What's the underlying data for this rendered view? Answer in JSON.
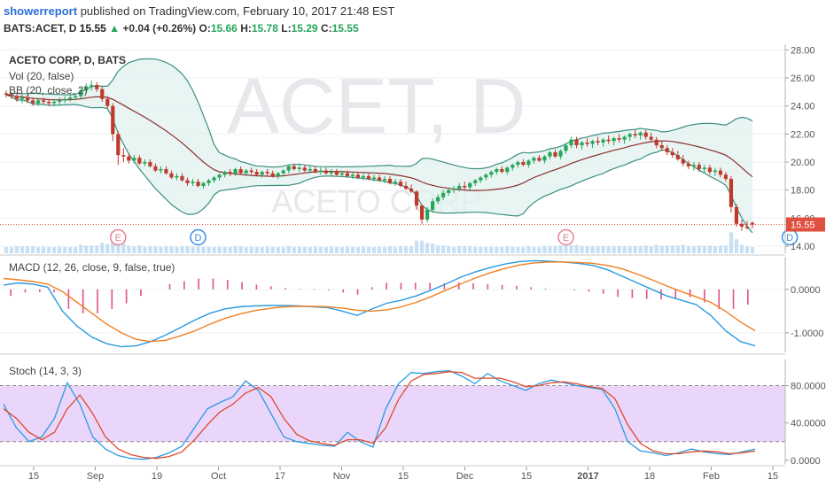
{
  "header": {
    "username": "showerreport",
    "published_text": "published on TradingView.com, February 10, 2017 21:48 EST",
    "symbol_line": "BATS:ACET, D",
    "last_price": "15.55",
    "up_arrow": "▲",
    "change": "+0.04 (+0.26%)",
    "open_label": "O:",
    "open": "15.66",
    "high_label": "H:",
    "high": "15.78",
    "low_label": "L:",
    "low": "15.29",
    "close_label": "C:",
    "close": "15.55"
  },
  "colors": {
    "up": "#26a65b",
    "down": "#c0392b",
    "bb_band": "#3c8f80",
    "bb_fill": "#e0f2ef",
    "bb_basis": "#8b2f2f",
    "macd": "#2c9ae0",
    "signal": "#f07f22",
    "hist": "#e0508a",
    "stoch_k": "#2c9ae0",
    "stoch_d": "#e04a2a",
    "stoch_band": "#ead6fa",
    "volume": "#b7d6ef",
    "earnings": "#e57f95",
    "dividend": "#3a8ee6",
    "price_tag": "#e05040"
  },
  "chart_data": [
    {
      "type": "candlestick",
      "title": "ACETO CORP, D, BATS",
      "watermark_symbol": "ACET, D",
      "watermark_name": "ACETO CORP",
      "indicator_labels": [
        "Vol (20, false)",
        "BB (20, close, 2)"
      ],
      "ylim": [
        13.5,
        28.4
      ],
      "y_ticks": [
        "28.00",
        "26.00",
        "24.00",
        "22.00",
        "20.00",
        "18.00",
        "16.00",
        "14.00"
      ],
      "last_price_tag": "15.55",
      "last_price": 15.55,
      "event_markers": [
        {
          "label": "E",
          "index": 21
        },
        {
          "label": "D",
          "index": 36
        },
        {
          "label": "E",
          "index": 105
        },
        {
          "label": "D",
          "index": 147
        },
        {
          "label": "E",
          "index": 210
        }
      ],
      "ohlc": [
        [
          24.9,
          25.1,
          24.6,
          24.8
        ],
        [
          24.8,
          25.0,
          24.5,
          24.7
        ],
        [
          24.7,
          24.9,
          24.3,
          24.5
        ],
        [
          24.5,
          24.8,
          24.2,
          24.6
        ],
        [
          24.6,
          24.8,
          24.2,
          24.4
        ],
        [
          24.4,
          24.6,
          24.0,
          24.2
        ],
        [
          24.2,
          24.5,
          24.0,
          24.4
        ],
        [
          24.4,
          24.6,
          24.1,
          24.3
        ],
        [
          24.3,
          24.5,
          24.0,
          24.2
        ],
        [
          24.2,
          24.5,
          24.0,
          24.3
        ],
        [
          24.3,
          24.6,
          24.1,
          24.4
        ],
        [
          24.4,
          24.7,
          24.2,
          24.5
        ],
        [
          24.5,
          24.8,
          24.3,
          24.6
        ],
        [
          24.6,
          24.9,
          24.4,
          24.7
        ],
        [
          24.7,
          25.3,
          24.5,
          25.1
        ],
        [
          25.1,
          25.6,
          24.9,
          25.4
        ],
        [
          25.4,
          25.8,
          25.1,
          25.5
        ],
        [
          25.5,
          25.7,
          25.0,
          25.2
        ],
        [
          25.2,
          25.4,
          24.3,
          24.5
        ],
        [
          24.5,
          24.7,
          23.8,
          24.0
        ],
        [
          24.0,
          24.2,
          21.5,
          22.0
        ],
        [
          22.0,
          22.2,
          19.8,
          20.5
        ],
        [
          20.5,
          21.0,
          20.0,
          20.4
        ],
        [
          20.4,
          20.6,
          19.9,
          20.1
        ],
        [
          20.1,
          20.5,
          19.9,
          20.3
        ],
        [
          20.3,
          20.5,
          19.8,
          19.9
        ],
        [
          19.9,
          20.2,
          19.7,
          20.0
        ],
        [
          20.0,
          20.2,
          19.6,
          19.7
        ],
        [
          19.7,
          19.9,
          19.3,
          19.4
        ],
        [
          19.4,
          19.7,
          19.2,
          19.5
        ],
        [
          19.5,
          19.7,
          19.1,
          19.2
        ],
        [
          19.2,
          19.4,
          18.8,
          18.9
        ],
        [
          18.9,
          19.2,
          18.7,
          19.0
        ],
        [
          19.0,
          19.2,
          18.6,
          18.7
        ],
        [
          18.7,
          18.9,
          18.3,
          18.5
        ],
        [
          18.5,
          18.8,
          18.3,
          18.6
        ],
        [
          18.6,
          18.8,
          18.2,
          18.3
        ],
        [
          18.3,
          18.6,
          18.1,
          18.5
        ],
        [
          18.5,
          18.8,
          18.3,
          18.7
        ],
        [
          18.7,
          19.0,
          18.5,
          18.9
        ],
        [
          18.9,
          19.2,
          18.7,
          19.1
        ],
        [
          19.1,
          19.4,
          18.9,
          19.3
        ],
        [
          19.3,
          19.5,
          19.0,
          19.2
        ],
        [
          19.2,
          19.6,
          19.0,
          19.5
        ],
        [
          19.5,
          19.7,
          19.1,
          19.2
        ],
        [
          19.2,
          19.5,
          19.0,
          19.4
        ],
        [
          19.4,
          19.6,
          19.1,
          19.3
        ],
        [
          19.3,
          19.5,
          19.0,
          19.1
        ],
        [
          19.1,
          19.4,
          18.9,
          19.3
        ],
        [
          19.3,
          19.5,
          19.0,
          19.2
        ],
        [
          19.2,
          19.4,
          18.9,
          19.0
        ],
        [
          19.0,
          19.3,
          18.8,
          19.2
        ],
        [
          19.2,
          19.5,
          19.0,
          19.4
        ],
        [
          19.4,
          19.8,
          19.2,
          19.7
        ],
        [
          19.7,
          19.9,
          19.4,
          19.5
        ],
        [
          19.5,
          19.8,
          19.3,
          19.6
        ],
        [
          19.6,
          19.8,
          19.3,
          19.4
        ],
        [
          19.4,
          19.7,
          19.2,
          19.5
        ],
        [
          19.5,
          19.7,
          19.2,
          19.3
        ],
        [
          19.3,
          19.6,
          19.1,
          19.4
        ],
        [
          19.4,
          19.6,
          19.1,
          19.2
        ],
        [
          19.2,
          19.5,
          19.0,
          19.3
        ],
        [
          19.3,
          19.5,
          19.0,
          19.1
        ],
        [
          19.1,
          19.4,
          18.9,
          19.2
        ],
        [
          19.2,
          19.4,
          18.9,
          19.0
        ],
        [
          19.0,
          19.3,
          18.8,
          19.1
        ],
        [
          19.1,
          19.3,
          18.8,
          18.9
        ],
        [
          18.9,
          19.2,
          18.7,
          19.0
        ],
        [
          19.0,
          19.2,
          18.7,
          18.8
        ],
        [
          18.8,
          19.1,
          18.6,
          18.9
        ],
        [
          18.9,
          19.1,
          18.6,
          18.7
        ],
        [
          18.7,
          19.0,
          18.5,
          18.8
        ],
        [
          18.8,
          19.0,
          18.4,
          18.5
        ],
        [
          18.5,
          18.8,
          18.3,
          18.6
        ],
        [
          18.6,
          18.8,
          18.2,
          18.3
        ],
        [
          18.3,
          18.6,
          18.0,
          18.1
        ],
        [
          18.1,
          18.4,
          17.8,
          17.9
        ],
        [
          17.9,
          18.0,
          16.6,
          16.9
        ],
        [
          16.9,
          17.0,
          15.6,
          15.9
        ],
        [
          15.9,
          16.8,
          15.7,
          16.6
        ],
        [
          16.6,
          17.4,
          16.4,
          17.2
        ],
        [
          17.2,
          17.7,
          17.0,
          17.5
        ],
        [
          17.5,
          18.0,
          17.3,
          17.8
        ],
        [
          17.8,
          18.2,
          17.6,
          18.0
        ],
        [
          18.0,
          18.3,
          17.8,
          18.1
        ],
        [
          18.1,
          18.5,
          17.9,
          18.3
        ],
        [
          18.3,
          18.6,
          18.0,
          18.2
        ],
        [
          18.2,
          18.6,
          18.0,
          18.5
        ],
        [
          18.5,
          18.8,
          18.3,
          18.7
        ],
        [
          18.7,
          19.0,
          18.5,
          18.9
        ],
        [
          18.9,
          19.2,
          18.7,
          19.1
        ],
        [
          19.1,
          19.4,
          18.9,
          19.3
        ],
        [
          19.3,
          19.6,
          19.1,
          19.5
        ],
        [
          19.5,
          19.7,
          19.2,
          19.3
        ],
        [
          19.3,
          19.7,
          19.1,
          19.6
        ],
        [
          19.6,
          19.9,
          19.4,
          19.8
        ],
        [
          19.8,
          20.1,
          19.6,
          20.0
        ],
        [
          20.0,
          20.2,
          19.7,
          19.8
        ],
        [
          19.8,
          20.2,
          19.6,
          20.1
        ],
        [
          20.1,
          20.4,
          19.9,
          20.3
        ],
        [
          20.3,
          20.5,
          20.0,
          20.1
        ],
        [
          20.1,
          20.5,
          19.9,
          20.4
        ],
        [
          20.4,
          20.8,
          20.2,
          20.7
        ],
        [
          20.7,
          20.9,
          20.3,
          20.4
        ],
        [
          20.4,
          20.9,
          20.2,
          20.8
        ],
        [
          20.8,
          21.3,
          20.6,
          21.2
        ],
        [
          21.2,
          21.8,
          21.0,
          21.6
        ],
        [
          21.6,
          21.8,
          21.0,
          21.2
        ],
        [
          21.2,
          21.5,
          20.9,
          21.4
        ],
        [
          21.4,
          21.7,
          21.1,
          21.3
        ],
        [
          21.3,
          21.6,
          21.0,
          21.5
        ],
        [
          21.5,
          21.8,
          21.2,
          21.4
        ],
        [
          21.4,
          21.7,
          21.1,
          21.6
        ],
        [
          21.6,
          21.9,
          21.3,
          21.5
        ],
        [
          21.5,
          21.8,
          21.2,
          21.7
        ],
        [
          21.7,
          22.0,
          21.4,
          21.6
        ],
        [
          21.6,
          21.9,
          21.3,
          21.8
        ],
        [
          21.8,
          22.1,
          21.5,
          22.0
        ],
        [
          22.0,
          22.3,
          21.7,
          21.9
        ],
        [
          21.9,
          22.2,
          21.6,
          22.1
        ],
        [
          22.1,
          22.3,
          21.6,
          21.8
        ],
        [
          21.8,
          22.1,
          21.5,
          21.6
        ],
        [
          21.6,
          21.8,
          21.0,
          21.2
        ],
        [
          21.2,
          21.5,
          20.8,
          21.0
        ],
        [
          21.0,
          21.2,
          20.5,
          20.7
        ],
        [
          20.7,
          21.0,
          20.3,
          20.5
        ],
        [
          20.5,
          20.8,
          20.1,
          20.2
        ],
        [
          20.2,
          20.5,
          19.7,
          19.9
        ],
        [
          19.9,
          20.1,
          19.5,
          19.7
        ],
        [
          19.7,
          20.0,
          19.4,
          19.8
        ],
        [
          19.8,
          20.0,
          19.3,
          19.5
        ],
        [
          19.5,
          19.8,
          19.2,
          19.6
        ],
        [
          19.6,
          19.8,
          19.1,
          19.3
        ],
        [
          19.3,
          19.6,
          19.0,
          19.4
        ],
        [
          19.4,
          19.6,
          18.9,
          19.1
        ],
        [
          19.1,
          19.3,
          18.6,
          18.8
        ],
        [
          18.8,
          19.0,
          16.4,
          16.8
        ],
        [
          16.8,
          17.0,
          15.4,
          15.6
        ],
        [
          15.6,
          15.9,
          15.1,
          15.4
        ],
        [
          15.4,
          15.8,
          15.2,
          15.3
        ],
        [
          15.66,
          15.78,
          15.29,
          15.55
        ]
      ]
    },
    {
      "type": "line",
      "title": "MACD (12, 26, close, 9, false, true)",
      "ylim": [
        -1.45,
        0.75
      ],
      "y_ticks": [
        "0.0000",
        "-1.0000"
      ],
      "series": [
        {
          "name": "",
          "y": [
            0.1,
            0.15,
            0.12,
            0.05,
            -0.5,
            -0.85,
            -1.1,
            -1.25,
            -1.32,
            -1.3,
            -1.2,
            -1.05,
            -0.88,
            -0.7,
            -0.55,
            -0.45,
            -0.4,
            -0.38,
            -0.37,
            -0.37,
            -0.38,
            -0.4,
            -0.42,
            -0.5,
            -0.6,
            -0.45,
            -0.32,
            -0.25,
            -0.15,
            -0.02,
            0.12,
            0.28,
            0.4,
            0.5,
            0.58,
            0.64,
            0.66,
            0.65,
            0.63,
            0.6,
            0.55,
            0.45,
            0.3,
            0.15,
            0.0,
            -0.15,
            -0.25,
            -0.35,
            -0.6,
            -0.95,
            -1.2,
            -1.3
          ]
        },
        {
          "name": "",
          "y": [
            0.25,
            0.22,
            0.18,
            0.12,
            -0.05,
            -0.3,
            -0.55,
            -0.8,
            -1.0,
            -1.15,
            -1.2,
            -1.17,
            -1.07,
            -0.95,
            -0.8,
            -0.67,
            -0.57,
            -0.49,
            -0.44,
            -0.4,
            -0.39,
            -0.39,
            -0.4,
            -0.43,
            -0.48,
            -0.5,
            -0.47,
            -0.4,
            -0.3,
            -0.17,
            -0.02,
            0.12,
            0.26,
            0.38,
            0.48,
            0.56,
            0.61,
            0.63,
            0.63,
            0.62,
            0.6,
            0.55,
            0.47,
            0.35,
            0.22,
            0.08,
            -0.05,
            -0.17,
            -0.3,
            -0.5,
            -0.75,
            -0.95
          ]
        },
        {
          "name": "",
          "y": [
            -0.15,
            -0.07,
            -0.06,
            -0.07,
            -0.45,
            -0.55,
            -0.55,
            -0.45,
            -0.32,
            -0.15,
            0.0,
            0.12,
            0.19,
            0.25,
            0.25,
            0.22,
            0.17,
            0.11,
            0.07,
            0.03,
            0.01,
            -0.01,
            -0.02,
            -0.07,
            -0.12,
            0.05,
            0.15,
            0.15,
            0.15,
            0.15,
            0.14,
            0.16,
            0.14,
            0.12,
            0.1,
            0.08,
            0.05,
            0.02,
            0.0,
            -0.02,
            -0.05,
            -0.1,
            -0.17,
            -0.2,
            -0.22,
            -0.23,
            -0.2,
            -0.18,
            -0.3,
            -0.45,
            -0.45,
            -0.35
          ]
        }
      ]
    },
    {
      "type": "line",
      "title": "Stoch (14, 3, 3)",
      "ylim": [
        -4,
        108
      ],
      "y_ticks": [
        "80.0000",
        "40.0000",
        "0.0000"
      ],
      "band": [
        20,
        80
      ],
      "series": [
        {
          "name": "",
          "y": [
            60,
            35,
            20,
            25,
            45,
            83,
            60,
            25,
            12,
            5,
            2,
            1,
            3,
            8,
            15,
            35,
            55,
            62,
            68,
            85,
            75,
            50,
            25,
            20,
            18,
            16,
            15,
            30,
            20,
            14,
            55,
            82,
            94,
            93,
            95,
            96,
            90,
            82,
            93,
            85,
            80,
            75,
            82,
            86,
            83,
            80,
            78,
            76,
            55,
            20,
            10,
            8,
            5,
            8,
            12,
            9,
            7,
            6,
            9,
            12
          ]
        },
        {
          "name": "",
          "y": [
            55,
            45,
            30,
            22,
            30,
            55,
            70,
            50,
            25,
            12,
            6,
            3,
            2,
            4,
            9,
            22,
            38,
            52,
            60,
            72,
            78,
            68,
            45,
            28,
            21,
            18,
            16,
            22,
            22,
            18,
            35,
            65,
            85,
            92,
            93,
            95,
            94,
            88,
            88,
            88,
            84,
            79,
            80,
            83,
            84,
            82,
            79,
            77,
            66,
            38,
            18,
            10,
            7,
            7,
            9,
            10,
            9,
            7,
            8,
            10
          ]
        }
      ]
    }
  ],
  "x_axis": {
    "labels": [
      "15",
      "Sep",
      "19",
      "Oct",
      "17",
      "Nov",
      "15",
      "Dec",
      "15",
      "2017",
      "18",
      "Feb",
      "15"
    ]
  }
}
